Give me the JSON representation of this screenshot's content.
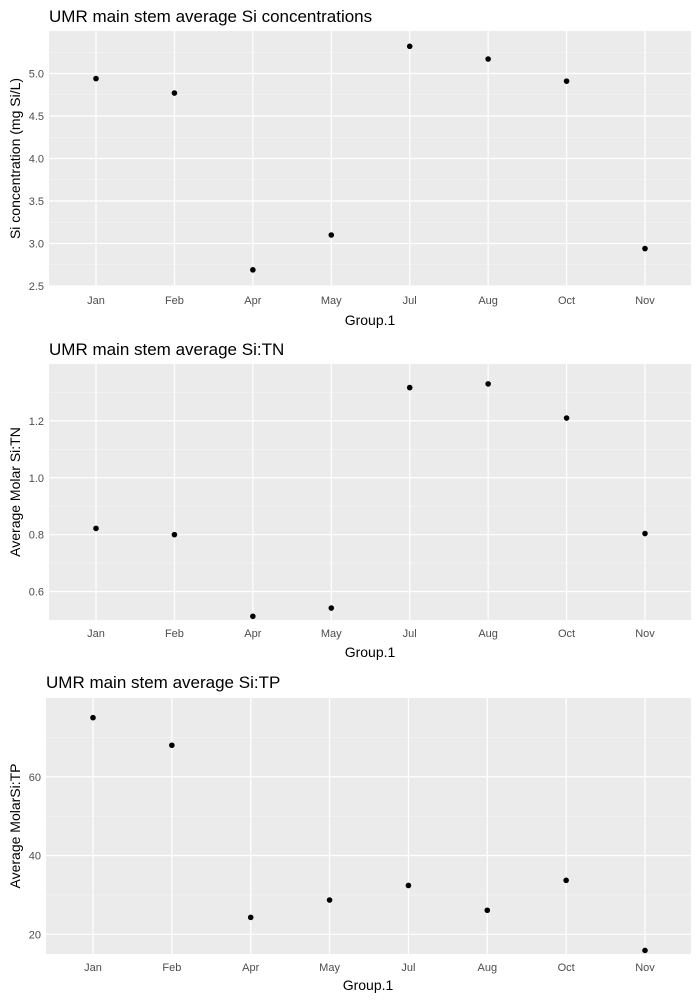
{
  "chart_data": [
    {
      "type": "scatter",
      "title": "UMR main stem average Si concentrations",
      "xlabel": "Group.1",
      "ylabel": "Si concentration (mg Si/L)",
      "categories": [
        "Jan",
        "Feb",
        "Apr",
        "May",
        "Jul",
        "Aug",
        "Oct",
        "Nov"
      ],
      "values": [
        4.94,
        4.77,
        2.69,
        3.1,
        5.32,
        5.17,
        4.91,
        2.94
      ],
      "ylim": [
        2.5,
        5.5
      ],
      "yticks": [
        "2.5",
        "3.0",
        "3.5",
        "4.0",
        "4.5",
        "5.0"
      ],
      "grid": true,
      "legend": "none"
    },
    {
      "type": "scatter",
      "title": "UMR main stem average Si:TN",
      "xlabel": "Group.1",
      "ylabel": "Average Molar Si:TN",
      "categories": [
        "Jan",
        "Feb",
        "Apr",
        "May",
        "Jul",
        "Aug",
        "Oct",
        "Nov"
      ],
      "values": [
        0.822,
        0.8,
        0.513,
        0.542,
        1.317,
        1.33,
        1.21,
        0.804
      ],
      "ylim": [
        0.5,
        1.4
      ],
      "yticks": [
        "0.6",
        "0.8",
        "1.0",
        "1.2"
      ],
      "grid": true,
      "legend": "none"
    },
    {
      "type": "scatter",
      "title": "UMR main stem average Si:TP",
      "xlabel": "Group.1",
      "ylabel": "Average MolarSi:TP",
      "categories": [
        "Jan",
        "Feb",
        "Apr",
        "May",
        "Jul",
        "Aug",
        "Oct",
        "Nov"
      ],
      "values": [
        75.0,
        68.0,
        24.3,
        28.7,
        32.4,
        26.1,
        33.7,
        15.9
      ],
      "ylim": [
        15,
        80
      ],
      "yticks": [
        "20",
        "40",
        "60"
      ],
      "grid": true,
      "legend": "none"
    }
  ]
}
